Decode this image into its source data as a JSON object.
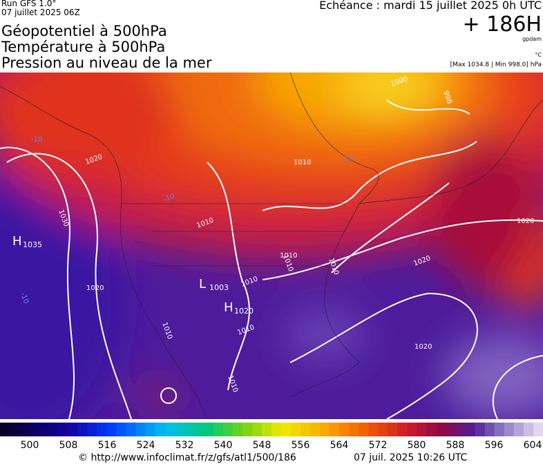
{
  "header": {
    "run": "Run GFS 1.0°",
    "date": "07 juillet 2025 06Z",
    "titles": [
      "Géopotentiel à 500hPa",
      "Température à 500hPa",
      "Pression au niveau de la mer"
    ],
    "echeance": "Echéance : mardi 15 juillet 2025 0h UTC",
    "lead": "+ 186H",
    "unit_geo": "gpdam",
    "unit_temp": "°C",
    "range": "[Max 1034.8 | Min 998.0] hPa"
  },
  "map": {
    "centers": [
      {
        "letter": "H",
        "value": "1035"
      },
      {
        "letter": "L",
        "value": "1003"
      },
      {
        "letter": "H",
        "value": "1020"
      }
    ],
    "isobar_labels": [
      "1000",
      "998",
      "1010",
      "1020",
      "1030",
      "1020",
      "1010",
      "1010",
      "1010",
      "1010",
      "1010",
      "1020",
      "1010",
      "1010",
      "1020",
      "1020",
      "1010",
      "-10",
      "-10",
      "-10",
      "-10"
    ]
  },
  "colorbar": {
    "labels": [
      "500",
      "508",
      "516",
      "524",
      "532",
      "540",
      "548",
      "556",
      "564",
      "572",
      "580",
      "588",
      "596",
      "604"
    ]
  },
  "footer": {
    "url": "© http://www.infoclimat.fr/z/gfs/atl1/500/186",
    "timestamp": "07 juil. 2025 10:26 UTC"
  }
}
